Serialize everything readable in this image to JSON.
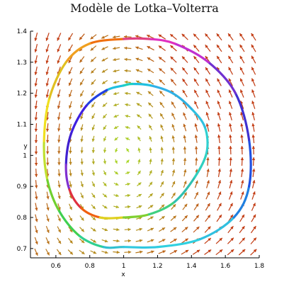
{
  "chart_data": {
    "type": "line",
    "title": "Modèle de Lotka–Volterra",
    "xlabel": "x",
    "ylabel": "y",
    "xlim": [
      0.45,
      1.8
    ],
    "ylim": [
      0.67,
      1.4
    ],
    "x_ticks": [
      0.6,
      0.8,
      1.0,
      1.2,
      1.4,
      1.6,
      1.8
    ],
    "x_tick_labels": [
      "0.6",
      "0.8",
      "1",
      "1.2",
      "1.4",
      "1.6",
      "1.8"
    ],
    "y_ticks": [
      0.7,
      0.8,
      0.9,
      1.0,
      1.1,
      1.2,
      1.3,
      1.4
    ],
    "y_tick_labels": [
      "0.7",
      "0.8",
      "0.9",
      "1",
      "1.1",
      "1.2",
      "1.3",
      "1.4"
    ],
    "grid": false,
    "legend": "none",
    "vector_field": {
      "dx": "x*(1-y)",
      "dy": "-y*(1-x)",
      "color_low": "#a8e02a",
      "color_high": "#c23b12"
    },
    "series": [
      {
        "x": [
          1.0,
          0.9,
          0.78,
          0.69,
          0.66,
          0.68,
          0.75,
          0.86,
          1.0,
          1.15,
          1.3,
          1.42,
          1.49,
          1.48,
          1.4,
          1.29,
          1.16,
          1.05,
          1.0
        ],
        "y": [
          1.225,
          1.21,
          1.16,
          1.07,
          0.97,
          0.89,
          0.83,
          0.8,
          0.8,
          0.81,
          0.85,
          0.93,
          1.01,
          1.09,
          1.15,
          1.2,
          1.225,
          1.23,
          1.225
        ],
        "colors": [
          "#20c0e0",
          "#2040e0",
          "#4020e0",
          "#4020d0",
          "#8030d0",
          "#e03040",
          "#f06010",
          "#e0d020",
          "#80d030",
          "#40d080",
          "#30c0b0",
          "#30d0c0",
          "#30d0d0",
          "#30c0e0",
          "#30b0e0",
          "#30b0e8",
          "#20c0e0",
          "#20d0c0",
          "#20c0e0"
        ]
      },
      {
        "x": [
          1.0,
          0.8,
          0.66,
          0.56,
          0.53,
          0.55,
          0.62,
          0.74,
          0.88,
          1.0,
          1.2,
          1.45,
          1.65,
          1.74,
          1.74,
          1.66,
          1.5,
          1.3,
          1.15,
          1.0
        ],
        "y": [
          1.375,
          1.36,
          1.3,
          1.18,
          1.04,
          0.92,
          0.82,
          0.74,
          0.705,
          0.705,
          0.705,
          0.73,
          0.8,
          0.9,
          1.05,
          1.2,
          1.3,
          1.36,
          1.375,
          1.375
        ],
        "colors": [
          "#f07010",
          "#f0a020",
          "#e0c020",
          "#f0e020",
          "#c0e030",
          "#70d030",
          "#40d050",
          "#30d090",
          "#30c0d0",
          "#30c8e0",
          "#30d0e0",
          "#30c0e0",
          "#2080e0",
          "#2050e0",
          "#4030d0",
          "#7030d0",
          "#c030d0",
          "#e030c0",
          "#e04080",
          "#f07010"
        ]
      }
    ]
  }
}
